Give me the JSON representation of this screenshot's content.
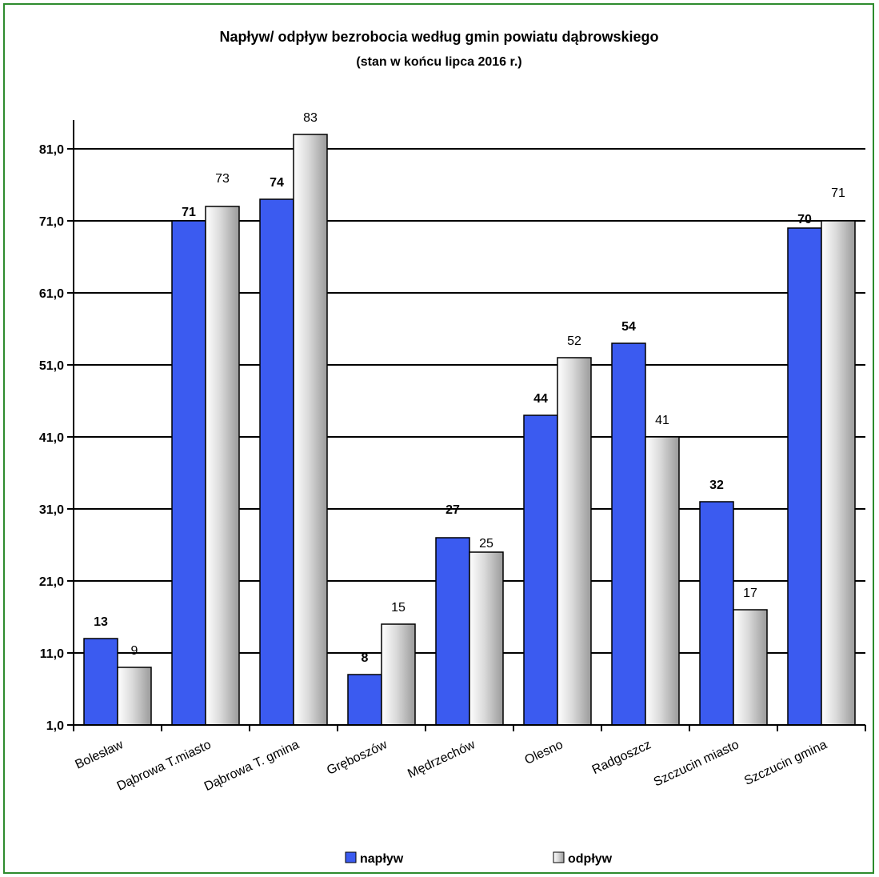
{
  "colors": {
    "border": "#2e8b2e",
    "series1": "#3b5bf0",
    "series2_light": "#ffffff",
    "series2_mid": "#d9d9d9",
    "series2_dark": "#9a9a9a",
    "grid": "#000000"
  },
  "chart_data": {
    "type": "bar",
    "title": "Napływ/ odpływ bezrobocia według gmin powiatu dąbrowskiego",
    "subtitle": "(stan w końcu lipca 2016 r.)",
    "categories": [
      "Bolesław",
      "Dąbrowa T.miasto",
      "Dąbrowa T. gmina",
      "Gręboszów",
      "Mędrzechów",
      "Olesno",
      "Radgoszcz",
      "Szczucin miasto",
      "Szczucin gmina"
    ],
    "series": [
      {
        "name": "napływ",
        "values": [
          13,
          71,
          74,
          8,
          27,
          44,
          54,
          32,
          70
        ]
      },
      {
        "name": "odpływ",
        "values": [
          9,
          73,
          83,
          15,
          25,
          52,
          41,
          17,
          71
        ]
      }
    ],
    "yticks": [
      "1,0",
      "11,0",
      "21,0",
      "31,0",
      "41,0",
      "51,0",
      "61,0",
      "71,0",
      "81,0"
    ],
    "ylim": [
      1,
      81
    ],
    "grid": true,
    "legend_position": "bottom"
  }
}
